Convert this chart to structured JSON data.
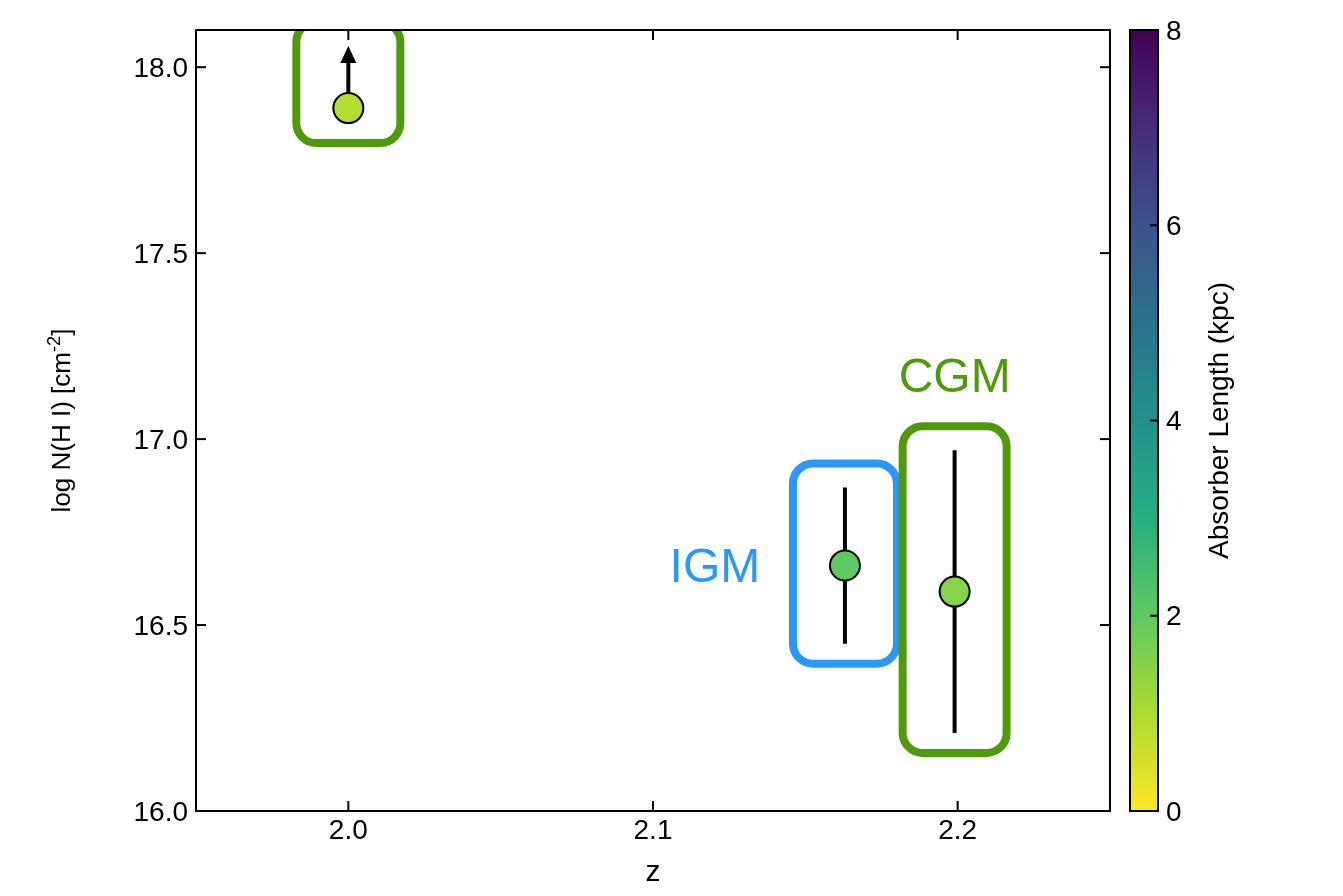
{
  "chart_data": {
    "type": "scatter",
    "xlabel": "z",
    "ylabel": "log N(H I) [cm$^{-2}$]",
    "clabel": "Absorber Length (kpc)",
    "x": [
      2.0,
      2.163,
      2.199
    ],
    "values": [
      17.89,
      16.66,
      16.59
    ],
    "errors": [
      null,
      [
        16.45,
        16.87
      ],
      [
        16.21,
        16.97
      ]
    ],
    "cvalues": [
      0.9,
      2.0,
      1.5
    ],
    "clim": [
      0,
      8
    ],
    "cticks": [
      0,
      2,
      4,
      6,
      8
    ],
    "xlim": [
      1.95,
      2.25
    ],
    "xticks": [
      {
        "value": 2.0,
        "label": "2.0"
      },
      2.1,
      2.2
    ],
    "ylim": [
      16.0,
      18.1
    ],
    "yticks": [
      {
        "value": 16.0,
        "label": "16.0"
      },
      16.5,
      {
        "value": 17.0,
        "label": "17.0"
      },
      17.5,
      {
        "value": 18.0,
        "label": "18.0"
      }
    ],
    "marker": "circle",
    "annotations": [
      "IGM",
      "CGM"
    ]
  }
}
